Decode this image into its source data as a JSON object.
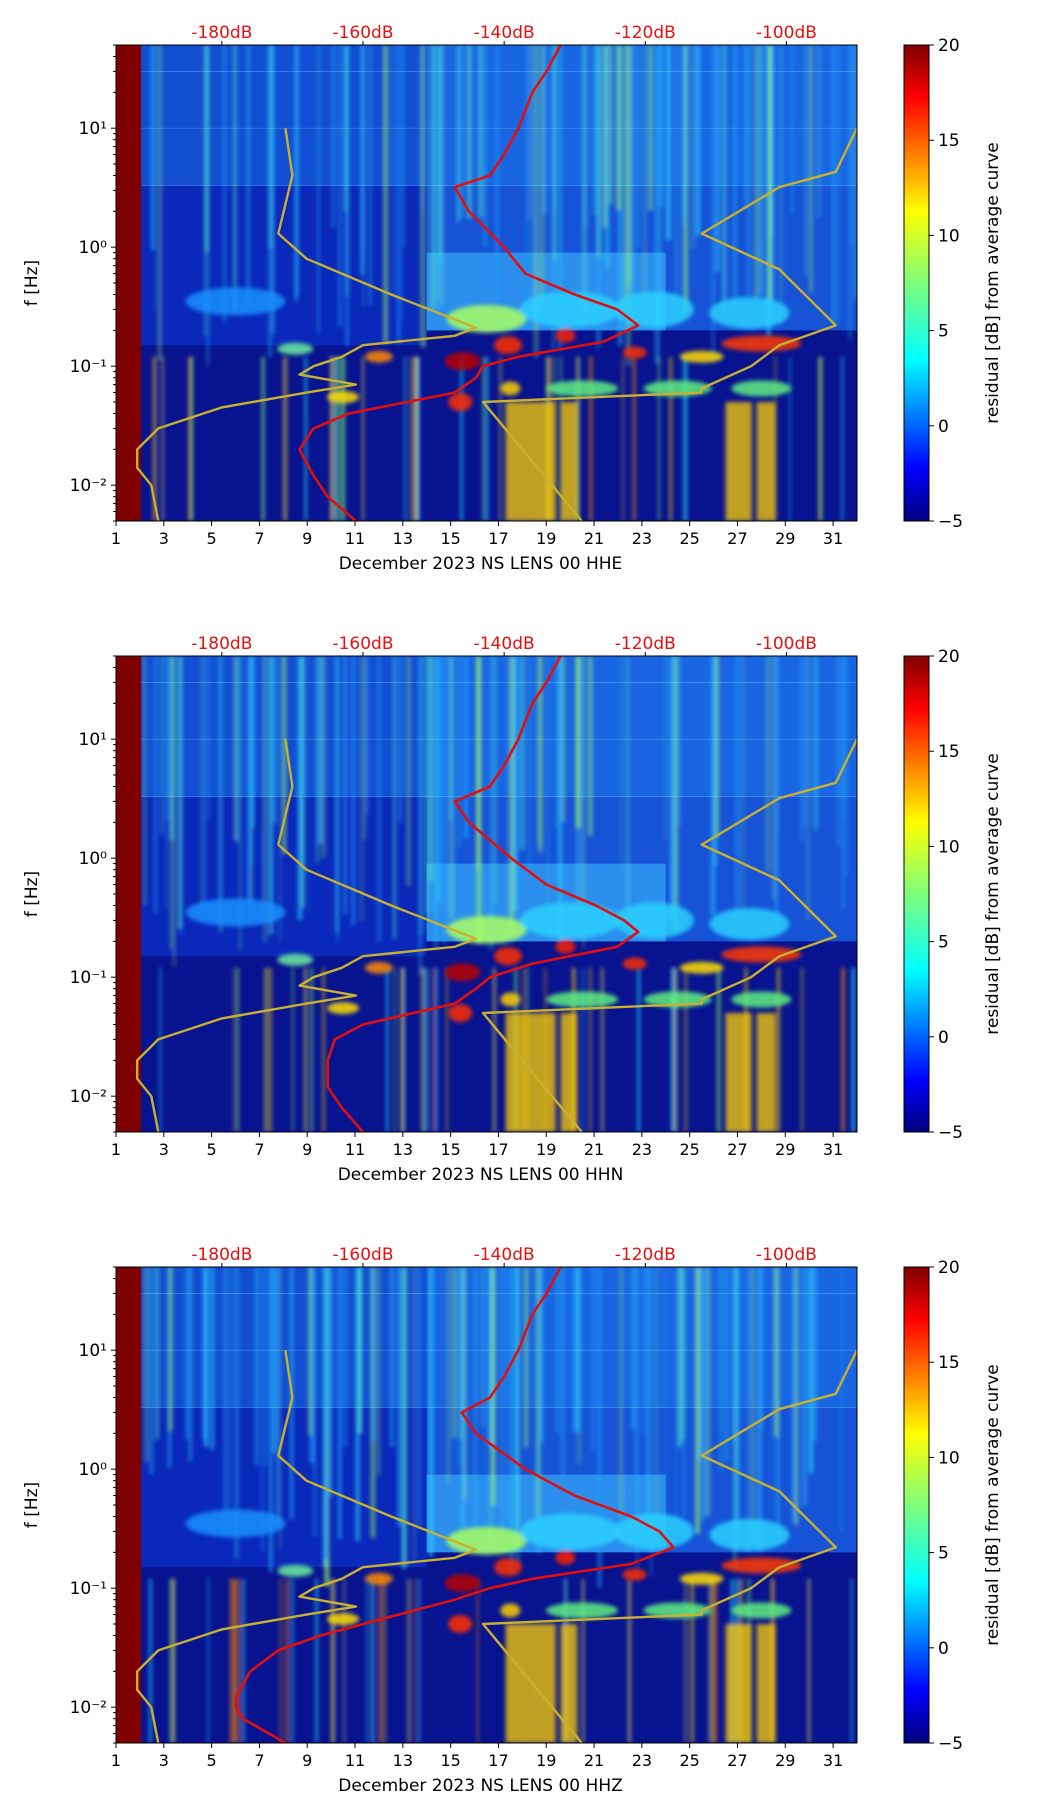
{
  "chart_data": [
    {
      "type": "heatmap",
      "xlabel": "December 2023 NS LENS 00 HHE",
      "ylabel": "f [Hz]",
      "x_ticks": [
        "1",
        "3",
        "5",
        "7",
        "9",
        "11",
        "13",
        "15",
        "17",
        "19",
        "21",
        "23",
        "25",
        "27",
        "29",
        "31"
      ],
      "y_ticks": [
        "10⁻²",
        "10⁻¹",
        "10⁰",
        "10¹"
      ],
      "top_ticks": [
        "-180dB",
        "-160dB",
        "-140dB",
        "-120dB",
        "-100dB"
      ],
      "xlim": [
        1,
        32
      ],
      "ylim": [
        0.005,
        50
      ],
      "y_scale": "log",
      "dB_range": [
        -195,
        -90
      ],
      "colorbar": {
        "label": "residual [dB] from average curve",
        "ticks": [
          "20",
          "15",
          "10",
          "5",
          "0",
          "−5"
        ],
        "range": [
          -5,
          20
        ],
        "colormap": "jet"
      },
      "series": [
        {
          "color": "#e01010",
          "points": [
            [
              50,
              -132
            ],
            [
              30,
              -134
            ],
            [
              20,
              -136
            ],
            [
              10,
              -138
            ],
            [
              6,
              -140
            ],
            [
              4,
              -142
            ],
            [
              3.2,
              -147
            ],
            [
              2,
              -145
            ],
            [
              1,
              -140
            ],
            [
              0.6,
              -137
            ],
            [
              0.4,
              -130
            ],
            [
              0.3,
              -124
            ],
            [
              0.22,
              -121
            ],
            [
              0.16,
              -126
            ],
            [
              0.12,
              -138
            ],
            [
              0.1,
              -143
            ],
            [
              0.08,
              -144
            ],
            [
              0.06,
              -147
            ],
            [
              0.04,
              -162
            ],
            [
              0.03,
              -167
            ],
            [
              0.02,
              -169
            ],
            [
              0.012,
              -167
            ],
            [
              0.008,
              -165
            ],
            [
              0.005,
              -161
            ]
          ]
        },
        {
          "color": "#c8b030",
          "points": [
            [
              10,
              -171
            ],
            [
              4,
              -170
            ],
            [
              1.3,
              -172
            ],
            [
              0.8,
              -168
            ],
            [
              0.4,
              -156
            ],
            [
              0.21,
              -144
            ],
            [
              0.18,
              -147
            ],
            [
              0.15,
              -160
            ],
            [
              0.12,
              -163
            ],
            [
              0.1,
              -167
            ],
            [
              0.085,
              -169
            ],
            [
              0.07,
              -161
            ],
            [
              0.06,
              -168
            ],
            [
              0.045,
              -180
            ],
            [
              0.03,
              -189
            ],
            [
              0.02,
              -192
            ],
            [
              0.014,
              -192
            ],
            [
              0.01,
              -190
            ],
            [
              0.005,
              -189
            ]
          ]
        },
        {
          "color": "#c8b030",
          "points": [
            [
              10,
              -90
            ],
            [
              4.3,
              -93
            ],
            [
              3.2,
              -101
            ],
            [
              1.3,
              -112
            ],
            [
              0.65,
              -101
            ],
            [
              0.22,
              -93
            ],
            [
              0.15,
              -101
            ],
            [
              0.1,
              -105
            ],
            [
              0.065,
              -112
            ],
            [
              0.06,
              -112
            ],
            [
              0.05,
              -143
            ],
            [
              0.005,
              -129
            ]
          ]
        }
      ]
    },
    {
      "type": "heatmap",
      "xlabel": "December 2023 NS LENS 00 HHN",
      "ylabel": "f [Hz]",
      "x_ticks": [
        "1",
        "3",
        "5",
        "7",
        "9",
        "11",
        "13",
        "15",
        "17",
        "19",
        "21",
        "23",
        "25",
        "27",
        "29",
        "31"
      ],
      "y_ticks": [
        "10⁻²",
        "10⁻¹",
        "10⁰",
        "10¹"
      ],
      "top_ticks": [
        "-180dB",
        "-160dB",
        "-140dB",
        "-120dB",
        "-100dB"
      ],
      "xlim": [
        1,
        32
      ],
      "ylim": [
        0.005,
        50
      ],
      "y_scale": "log",
      "dB_range": [
        -195,
        -90
      ],
      "colorbar": {
        "label": "residual [dB] from average curve",
        "ticks": [
          "20",
          "15",
          "10",
          "5",
          "0",
          "−5"
        ],
        "range": [
          -5,
          20
        ],
        "colormap": "jet"
      },
      "series": [
        {
          "color": "#e01010",
          "points": [
            [
              50,
              -132
            ],
            [
              30,
              -134
            ],
            [
              20,
              -136
            ],
            [
              10,
              -138
            ],
            [
              6,
              -140
            ],
            [
              4,
              -142
            ],
            [
              3,
              -147
            ],
            [
              2,
              -145
            ],
            [
              1,
              -139
            ],
            [
              0.6,
              -134
            ],
            [
              0.4,
              -127
            ],
            [
              0.3,
              -123
            ],
            [
              0.24,
              -121
            ],
            [
              0.18,
              -124
            ],
            [
              0.13,
              -136
            ],
            [
              0.1,
              -142
            ],
            [
              0.08,
              -144
            ],
            [
              0.06,
              -147
            ],
            [
              0.04,
              -160
            ],
            [
              0.03,
              -164
            ],
            [
              0.02,
              -165
            ],
            [
              0.012,
              -165
            ],
            [
              0.008,
              -163
            ],
            [
              0.005,
              -160
            ]
          ]
        },
        {
          "color": "#c8b030",
          "points": [
            [
              10,
              -171
            ],
            [
              4,
              -170
            ],
            [
              1.3,
              -172
            ],
            [
              0.8,
              -168
            ],
            [
              0.4,
              -156
            ],
            [
              0.21,
              -144
            ],
            [
              0.18,
              -147
            ],
            [
              0.15,
              -160
            ],
            [
              0.12,
              -163
            ],
            [
              0.1,
              -167
            ],
            [
              0.085,
              -169
            ],
            [
              0.07,
              -161
            ],
            [
              0.06,
              -168
            ],
            [
              0.045,
              -180
            ],
            [
              0.03,
              -189
            ],
            [
              0.02,
              -192
            ],
            [
              0.014,
              -192
            ],
            [
              0.01,
              -190
            ],
            [
              0.005,
              -189
            ]
          ]
        },
        {
          "color": "#c8b030",
          "points": [
            [
              10,
              -90
            ],
            [
              4.3,
              -93
            ],
            [
              3.2,
              -101
            ],
            [
              1.3,
              -112
            ],
            [
              0.65,
              -101
            ],
            [
              0.22,
              -93
            ],
            [
              0.15,
              -101
            ],
            [
              0.1,
              -105
            ],
            [
              0.065,
              -112
            ],
            [
              0.06,
              -112
            ],
            [
              0.05,
              -143
            ],
            [
              0.005,
              -129
            ]
          ]
        }
      ]
    },
    {
      "type": "heatmap",
      "xlabel": "December 2023 NS LENS 00 HHZ",
      "ylabel": "f [Hz]",
      "x_ticks": [
        "1",
        "3",
        "5",
        "7",
        "9",
        "11",
        "13",
        "15",
        "17",
        "19",
        "21",
        "23",
        "25",
        "27",
        "29",
        "31"
      ],
      "y_ticks": [
        "10⁻²",
        "10⁻¹",
        "10⁰",
        "10¹"
      ],
      "top_ticks": [
        "-180dB",
        "-160dB",
        "-140dB",
        "-120dB",
        "-100dB"
      ],
      "xlim": [
        1,
        32
      ],
      "ylim": [
        0.005,
        50
      ],
      "y_scale": "log",
      "dB_range": [
        -195,
        -90
      ],
      "colorbar": {
        "label": "residual [dB] from average curve",
        "ticks": [
          "20",
          "15",
          "10",
          "5",
          "0",
          "−5"
        ],
        "range": [
          -5,
          20
        ],
        "colormap": "jet"
      },
      "series": [
        {
          "color": "#e01010",
          "points": [
            [
              50,
              -132
            ],
            [
              30,
              -134
            ],
            [
              20,
              -136
            ],
            [
              10,
              -138
            ],
            [
              6,
              -140
            ],
            [
              4,
              -142
            ],
            [
              3,
              -146
            ],
            [
              2,
              -144
            ],
            [
              1,
              -137
            ],
            [
              0.6,
              -130
            ],
            [
              0.4,
              -122
            ],
            [
              0.3,
              -118
            ],
            [
              0.22,
              -116
            ],
            [
              0.16,
              -122
            ],
            [
              0.12,
              -136
            ],
            [
              0.1,
              -142
            ],
            [
              0.08,
              -147
            ],
            [
              0.06,
              -155
            ],
            [
              0.04,
              -166
            ],
            [
              0.03,
              -172
            ],
            [
              0.02,
              -176
            ],
            [
              0.012,
              -178
            ],
            [
              0.01,
              -178
            ],
            [
              0.008,
              -177
            ],
            [
              0.005,
              -171
            ]
          ]
        },
        {
          "color": "#c8b030",
          "points": [
            [
              10,
              -171
            ],
            [
              4,
              -170
            ],
            [
              1.3,
              -172
            ],
            [
              0.8,
              -168
            ],
            [
              0.4,
              -156
            ],
            [
              0.21,
              -144
            ],
            [
              0.18,
              -147
            ],
            [
              0.15,
              -160
            ],
            [
              0.12,
              -163
            ],
            [
              0.1,
              -167
            ],
            [
              0.085,
              -169
            ],
            [
              0.07,
              -161
            ],
            [
              0.06,
              -168
            ],
            [
              0.045,
              -180
            ],
            [
              0.03,
              -189
            ],
            [
              0.02,
              -192
            ],
            [
              0.014,
              -192
            ],
            [
              0.01,
              -190
            ],
            [
              0.005,
              -189
            ]
          ]
        },
        {
          "color": "#c8b030",
          "points": [
            [
              10,
              -90
            ],
            [
              4.3,
              -93
            ],
            [
              3.2,
              -101
            ],
            [
              1.3,
              -112
            ],
            [
              0.65,
              -101
            ],
            [
              0.22,
              -93
            ],
            [
              0.15,
              -101
            ],
            [
              0.1,
              -105
            ],
            [
              0.065,
              -112
            ],
            [
              0.06,
              -112
            ],
            [
              0.05,
              -143
            ],
            [
              0.005,
              -129
            ]
          ]
        }
      ]
    }
  ]
}
